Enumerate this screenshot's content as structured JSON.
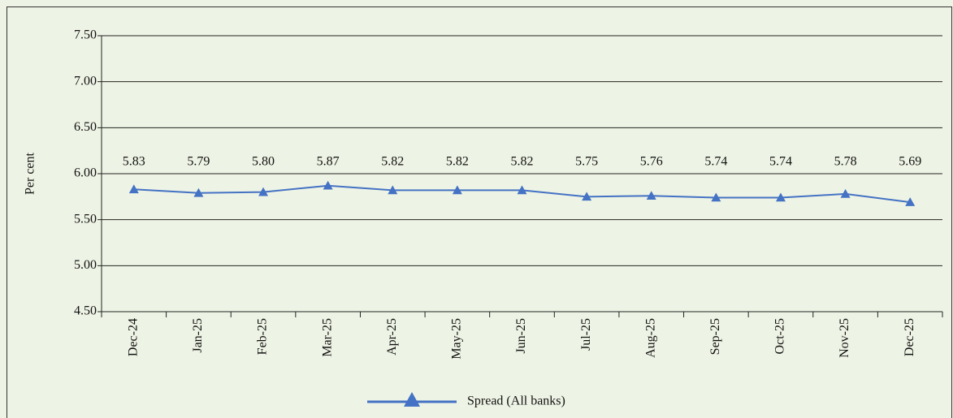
{
  "chart_data": {
    "type": "line",
    "y_label": "Per cent",
    "categories": [
      "Dec-24",
      "Jan-25",
      "Feb-25",
      "Mar-25",
      "Apr-25",
      "May-25",
      "Jun-25",
      "Jul-25",
      "Aug-25",
      "Sep-25",
      "Oct-25",
      "Nov-25",
      "Dec-25"
    ],
    "series": [
      {
        "name": "Spread (All banks)",
        "color": "#4472c4",
        "values": [
          5.83,
          5.79,
          5.8,
          5.87,
          5.82,
          5.82,
          5.82,
          5.75,
          5.76,
          5.74,
          5.74,
          5.78,
          5.69
        ],
        "value_labels": [
          "5.83",
          "5.79",
          "5.80",
          "5.87",
          "5.82",
          "5.82",
          "5.82",
          "5.75",
          "5.76",
          "5.74",
          "5.74",
          "5.78",
          "5.69"
        ]
      }
    ],
    "ylim": [
      4.5,
      7.5
    ],
    "yticks": [
      {
        "value": 4.5,
        "label": "4.50"
      },
      {
        "value": 5,
        "label": "5.00"
      },
      {
        "value": 5.5,
        "label": "5.50"
      },
      {
        "value": 6,
        "label": "6.00"
      },
      {
        "value": 6.5,
        "label": "6.50"
      },
      {
        "value": 7,
        "label": "7.00"
      },
      {
        "value": 7.5,
        "label": "7.50"
      }
    ],
    "grid": true,
    "legend": "bottom"
  }
}
